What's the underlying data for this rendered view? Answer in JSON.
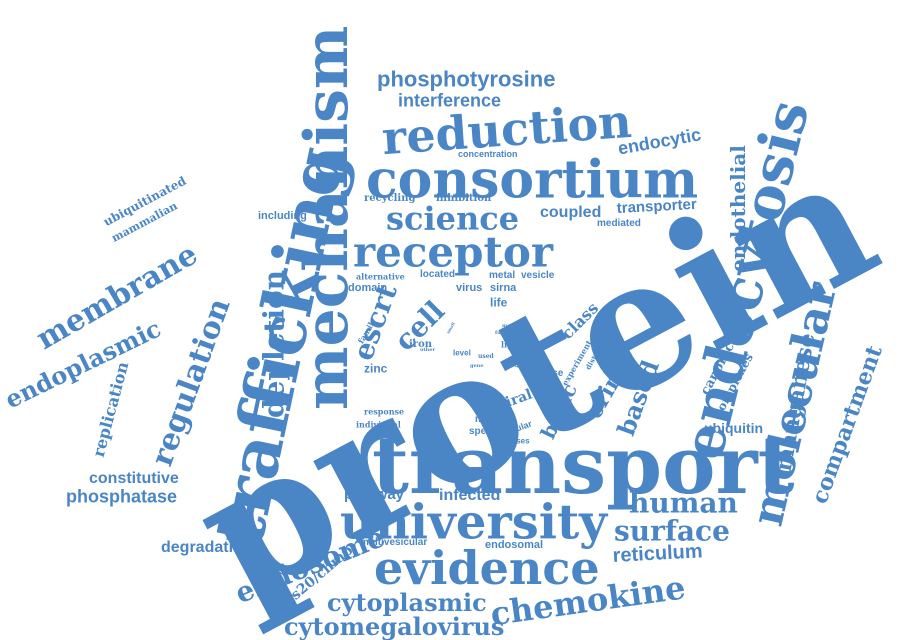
{
  "colors": {
    "word": "#4a86c5",
    "background": "#ffffff"
  },
  "words": {
    "protein": "protein",
    "transport": "transport",
    "trafficking": "trafficking",
    "mechanism": "mechanism",
    "consortium": "consortium",
    "endocytosis": "endocytosis",
    "university": "university",
    "evidence": "evidence",
    "molecular": "molecular",
    "reduction": "reduction",
    "receptor": "receptor",
    "science": "science",
    "membrane": "membrane",
    "regulation": "regulation",
    "depletion": "depletion",
    "chemokine": "chemokine",
    "human": "human",
    "surface": "surface",
    "endosome": "endosome",
    "cytoplasmic": "cytoplasmic",
    "cytomegalovirus": "cytomegalovirus",
    "phosphotyrosine": "phosphotyrosine",
    "interference": "interference",
    "endoplasmic": "endoplasmic",
    "compartment": "compartment",
    "manganese": "manganese",
    "endothelial": "endothelial",
    "escrt": "escrt",
    "cell": "cell",
    "based": "based",
    "crime": "crime",
    "basic": "basic",
    "endocytic": "endocytic",
    "coupled": "coupled",
    "transporter": "transporter",
    "reticulum": "reticulum",
    "constitutive": "constitutive",
    "phosphatase": "phosphatase",
    "degradation": "degradation",
    "pathway": "pathway",
    "infected": "infected",
    "replication": "replication",
    "ubiquitin": "ubiquitin",
    "complexes": "complexes",
    "canonical": "canonical",
    "class": "class",
    "viral": "viral",
    "vps20chmp": "vps20/chmp",
    "multivesicular": "multivesicular",
    "endosomal": "endosomal",
    "ubiquitinated": "ubiquitinated",
    "mammalian": "mammalian",
    "including": "including",
    "concentration": "concentration",
    "recycling": "recycling",
    "inhibition": "inhibition",
    "mediated": "mediated",
    "alternative": "alternative",
    "located": "located",
    "metal": "metal",
    "vesicle": "vesicle",
    "domain": "domain",
    "virus": "virus",
    "sirna": "sirna",
    "life": "life",
    "zinc": "zinc",
    "iron": "iron",
    "family": "family",
    "level": "level",
    "ligand": "ligand",
    "ligase": "ligase",
    "many": "many",
    "specific": "specific",
    "cellular": "cellular",
    "processes": "processes",
    "response": "response",
    "individual": "individual",
    "experiment": "experiment",
    "distribution": "distribution",
    "model": "model",
    "function": "function",
    "used": "used",
    "gene": "gene",
    "possibly": "possibly",
    "other": "other",
    "small": "small"
  }
}
